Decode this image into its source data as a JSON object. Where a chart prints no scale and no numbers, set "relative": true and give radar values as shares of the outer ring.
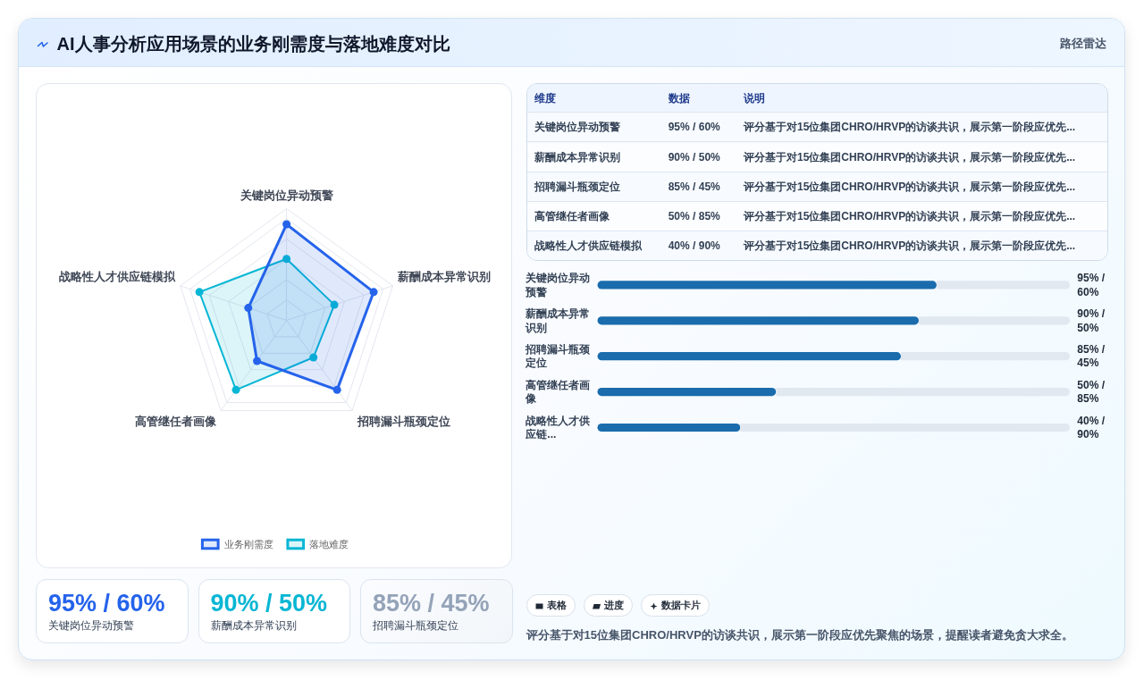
{
  "chart_data": [
    {
      "type": "other",
      "title": "AI人事分析应用场景的业务刚需度与落地难度对比",
      "subtitle": "路径雷达"
    },
    {
      "type": "radar",
      "relative": true,
      "categories": [
        "关键岗位异动预警",
        "薪酬成本异常识别",
        "招聘漏斗瓶颈定位",
        "高管继任者画像",
        "战略性人才供应链模拟"
      ],
      "grid": true,
      "legend": "bottom",
      "marker": "circle",
      "series": [
        {
          "name": "业务刚需度",
          "color": "#2563eb",
          "values": [
            0.86,
            0.82,
            0.77,
            0.45,
            0.36
          ]
        },
        {
          "name": "落地难度",
          "color": "#06b6d4",
          "values": [
            0.55,
            0.45,
            0.41,
            0.77,
            0.82
          ]
        }
      ]
    },
    {
      "type": "other",
      "annotations": [
        "维度",
        "数据",
        "说明",
        "关键岗位异动预警",
        "95% / 60%",
        "评分基于对15位集团CHRO/HRVP的访谈共识，展示第一阶段应优先...",
        "薪酬成本异常识别",
        "90% / 50%",
        "评分基于对15位集团CHRO/HRVP的访谈共识，展示第一阶段应优先...",
        "招聘漏斗瓶颈定位",
        "85% / 45%",
        "评分基于对15位集团CHRO/HRVP的访谈共识，展示第一阶段应优先...",
        "高管继任者画像",
        "50% / 85%",
        "评分基于对15位集团CHRO/HRVP的访谈共识，展示第一阶段应优先...",
        "战略性人才供应链模拟",
        "40% / 90%",
        "评分基于对15位集团CHRO/HRVP的访谈共识，展示第一阶段应优先..."
      ]
    },
    {
      "type": "bar",
      "orientation": "horizontal",
      "categories": [
        "关键岗位异动预警",
        "薪酬成本异常识别",
        "招聘漏斗瓶颈定位",
        "高管继任者画像",
        "战略性人才供应链..."
      ],
      "values": [
        95,
        90,
        85,
        50,
        40
      ],
      "value_labels": [
        "95% / 60%",
        "90% / 50%",
        "85% / 45%",
        "50% / 85%",
        "40% / 90%"
      ],
      "color": "#1a6cac"
    },
    {
      "type": "other",
      "annotations": [
        "95% / 60%",
        "关键岗位异动预警",
        "90% / 50%",
        "薪酬成本异常识别",
        "85% / 45%",
        "招聘漏斗瓶颈定位"
      ]
    },
    {
      "type": "other",
      "annotations": [
        "表格",
        "进度",
        "数据卡片",
        "评分基于对15位集团CHRO/HRVP的访谈共识，展示第一阶段应优先聚焦的场景，提醒读者避免贪大求全。"
      ]
    }
  ]
}
